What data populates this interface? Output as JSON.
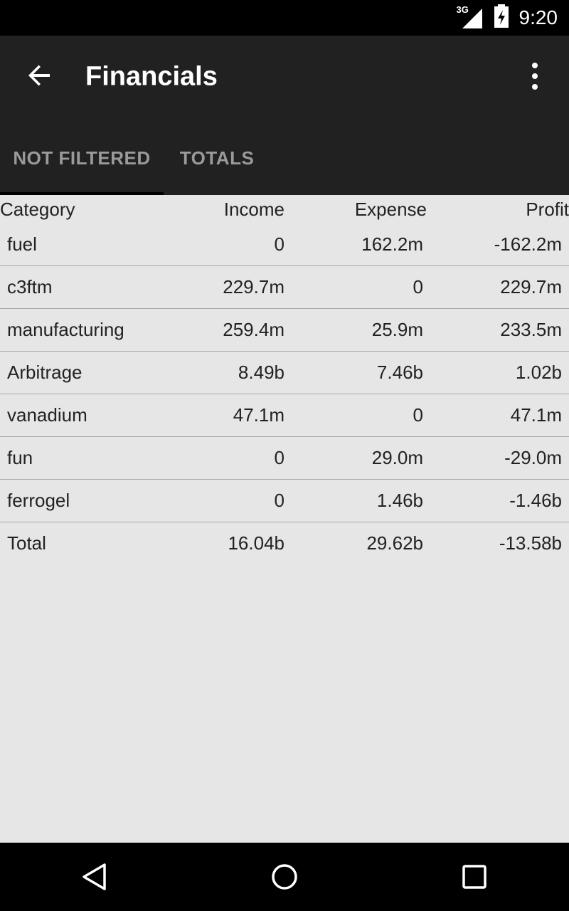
{
  "status": {
    "time": "9:20",
    "network": "3G"
  },
  "appbar": {
    "title": "Financials"
  },
  "tabs": [
    {
      "label": "NOT FILTERED",
      "selected": true
    },
    {
      "label": "TOTALS",
      "selected": false
    }
  ],
  "table": {
    "headers": [
      "Category",
      "Income",
      "Expense",
      "Profit"
    ],
    "rows": [
      [
        "fuel",
        "0",
        "162.2m",
        "-162.2m"
      ],
      [
        "c3ftm",
        "229.7m",
        "0",
        "229.7m"
      ],
      [
        "manufacturing",
        "259.4m",
        "25.9m",
        "233.5m"
      ],
      [
        "Arbitrage",
        "8.49b",
        "7.46b",
        "1.02b"
      ],
      [
        "vanadium",
        "47.1m",
        "0",
        "47.1m"
      ],
      [
        "fun",
        "0",
        "29.0m",
        "-29.0m"
      ],
      [
        "ferrogel",
        "0",
        "1.46b",
        "-1.46b"
      ],
      [
        "Total",
        "16.04b",
        "29.62b",
        "-13.58b"
      ]
    ]
  },
  "colors": {
    "appbar": "#212121",
    "background": "#e6e6e6",
    "tab_text": "#9a9a9a"
  }
}
